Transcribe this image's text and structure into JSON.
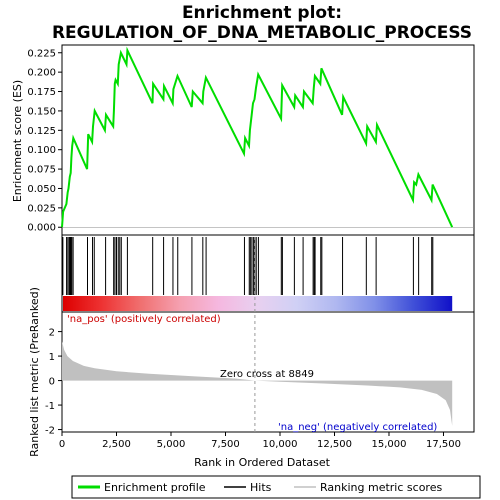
{
  "chart_data": {
    "type": "line",
    "title_line1": "Enrichment plot:",
    "title_line2": "REGULATION_OF_DNA_METABOLIC_PROCESS",
    "top_panel": {
      "ylabel": "Enrichment score (ES)",
      "ylim": [
        -0.01,
        0.235
      ],
      "yticks": [
        0.0,
        0.025,
        0.05,
        0.075,
        0.1,
        0.125,
        0.15,
        0.175,
        0.2,
        0.225
      ],
      "ytick_labels": [
        "0.000",
        "0.025",
        "0.050",
        "0.075",
        "0.100",
        "0.125",
        "0.150",
        "0.175",
        "0.200",
        "0.225"
      ],
      "series_name": "Enrichment profile",
      "color": "#00dd00",
      "points": [
        [
          0,
          0.0
        ],
        [
          50,
          0.02
        ],
        [
          200,
          0.03
        ],
        [
          260,
          0.045
        ],
        [
          300,
          0.05
        ],
        [
          360,
          0.065
        ],
        [
          400,
          0.07
        ],
        [
          430,
          0.09
        ],
        [
          470,
          0.105
        ],
        [
          520,
          0.115
        ],
        [
          1150,
          0.075
        ],
        [
          1200,
          0.12
        ],
        [
          1380,
          0.11
        ],
        [
          1420,
          0.13
        ],
        [
          1500,
          0.15
        ],
        [
          1970,
          0.125
        ],
        [
          2020,
          0.145
        ],
        [
          2350,
          0.13
        ],
        [
          2380,
          0.15
        ],
        [
          2420,
          0.185
        ],
        [
          2460,
          0.19
        ],
        [
          2560,
          0.185
        ],
        [
          2600,
          0.21
        ],
        [
          2700,
          0.225
        ],
        [
          2960,
          0.21
        ],
        [
          3000,
          0.228
        ],
        [
          4150,
          0.16
        ],
        [
          4180,
          0.185
        ],
        [
          4650,
          0.165
        ],
        [
          4680,
          0.182
        ],
        [
          5080,
          0.16
        ],
        [
          5110,
          0.178
        ],
        [
          5300,
          0.195
        ],
        [
          5950,
          0.155
        ],
        [
          6000,
          0.175
        ],
        [
          6450,
          0.16
        ],
        [
          6480,
          0.175
        ],
        [
          6600,
          0.193
        ],
        [
          8350,
          0.095
        ],
        [
          8400,
          0.115
        ],
        [
          8580,
          0.105
        ],
        [
          8620,
          0.125
        ],
        [
          8700,
          0.145
        ],
        [
          8760,
          0.16
        ],
        [
          8830,
          0.165
        ],
        [
          8900,
          0.18
        ],
        [
          9000,
          0.197
        ],
        [
          10050,
          0.14
        ],
        [
          10100,
          0.183
        ],
        [
          10650,
          0.155
        ],
        [
          10700,
          0.17
        ],
        [
          11050,
          0.155
        ],
        [
          11100,
          0.175
        ],
        [
          11500,
          0.16
        ],
        [
          11550,
          0.18
        ],
        [
          11600,
          0.195
        ],
        [
          11850,
          0.185
        ],
        [
          11900,
          0.205
        ],
        [
          12850,
          0.145
        ],
        [
          12900,
          0.168
        ],
        [
          13950,
          0.108
        ],
        [
          14000,
          0.13
        ],
        [
          14400,
          0.11
        ],
        [
          14450,
          0.132
        ],
        [
          16100,
          0.035
        ],
        [
          16150,
          0.058
        ],
        [
          16250,
          0.055
        ],
        [
          16350,
          0.068
        ],
        [
          16950,
          0.035
        ],
        [
          17000,
          0.055
        ],
        [
          17900,
          0.0
        ]
      ]
    },
    "hits_panel": {
      "hit_positions": [
        40,
        210,
        270,
        330,
        370,
        410,
        450,
        510,
        1170,
        1400,
        1480,
        2000,
        2370,
        2430,
        2500,
        2580,
        2650,
        2720,
        3000,
        4160,
        4660,
        5090,
        5310,
        5960,
        6460,
        6610,
        8370,
        8590,
        8640,
        8710,
        8780,
        8840,
        8910,
        9010,
        10060,
        10110,
        10660,
        11060,
        11520,
        11570,
        11610,
        11870,
        11920,
        12870,
        13960,
        14410,
        16120,
        16360,
        16960,
        17010
      ],
      "gradient_colors": [
        "#dd0000",
        "#ee3333",
        "#f07070",
        "#f5a0b0",
        "#f5b8e0",
        "#e8d0f0",
        "#d0d0f5",
        "#b0b8f0",
        "#8090e8",
        "#4050d8",
        "#1010c8"
      ]
    },
    "bottom_panel": {
      "ylabel": "Ranked list metric (PreRanked)",
      "xlabel": "Rank in Ordered Dataset",
      "ylim": [
        -2.1,
        2.8
      ],
      "yticks": [
        -2,
        -1,
        0,
        1,
        2
      ],
      "ytick_labels": [
        "-2",
        "-1",
        "0",
        "1",
        "2"
      ],
      "xlim": [
        0,
        18900
      ],
      "xticks": [
        0,
        2500,
        5000,
        7500,
        10000,
        12500,
        15000,
        17500
      ],
      "xtick_labels": [
        "0",
        "2,500",
        "5,000",
        "7,500",
        "10,000",
        "12,500",
        "15,000",
        "17,500"
      ],
      "metric_curve": [
        [
          0,
          1.6
        ],
        [
          100,
          1.25
        ],
        [
          250,
          1.0
        ],
        [
          500,
          0.8
        ],
        [
          1000,
          0.6
        ],
        [
          1500,
          0.5
        ],
        [
          2500,
          0.38
        ],
        [
          4000,
          0.28
        ],
        [
          6000,
          0.18
        ],
        [
          8000,
          0.08
        ],
        [
          8849,
          0.0
        ],
        [
          10000,
          -0.05
        ],
        [
          12000,
          -0.12
        ],
        [
          14000,
          -0.2
        ],
        [
          15500,
          -0.28
        ],
        [
          16500,
          -0.38
        ],
        [
          17200,
          -0.55
        ],
        [
          17600,
          -0.8
        ],
        [
          17800,
          -1.2
        ],
        [
          17900,
          -1.85
        ]
      ],
      "zero_cross_rank": 8849,
      "zero_cross_label": "Zero cross at 8849",
      "pos_label": "'na_pos' (positively correlated)",
      "neg_label": "'na_neg' (negatively correlated)"
    },
    "legend": {
      "placement": "bottom",
      "items": [
        {
          "label": "Enrichment profile",
          "color": "#00dd00",
          "kind": "line"
        },
        {
          "label": "Hits",
          "color": "#000000",
          "kind": "line"
        },
        {
          "label": "Ranking metric scores",
          "color": "#c0c0c0",
          "kind": "line"
        }
      ]
    }
  }
}
